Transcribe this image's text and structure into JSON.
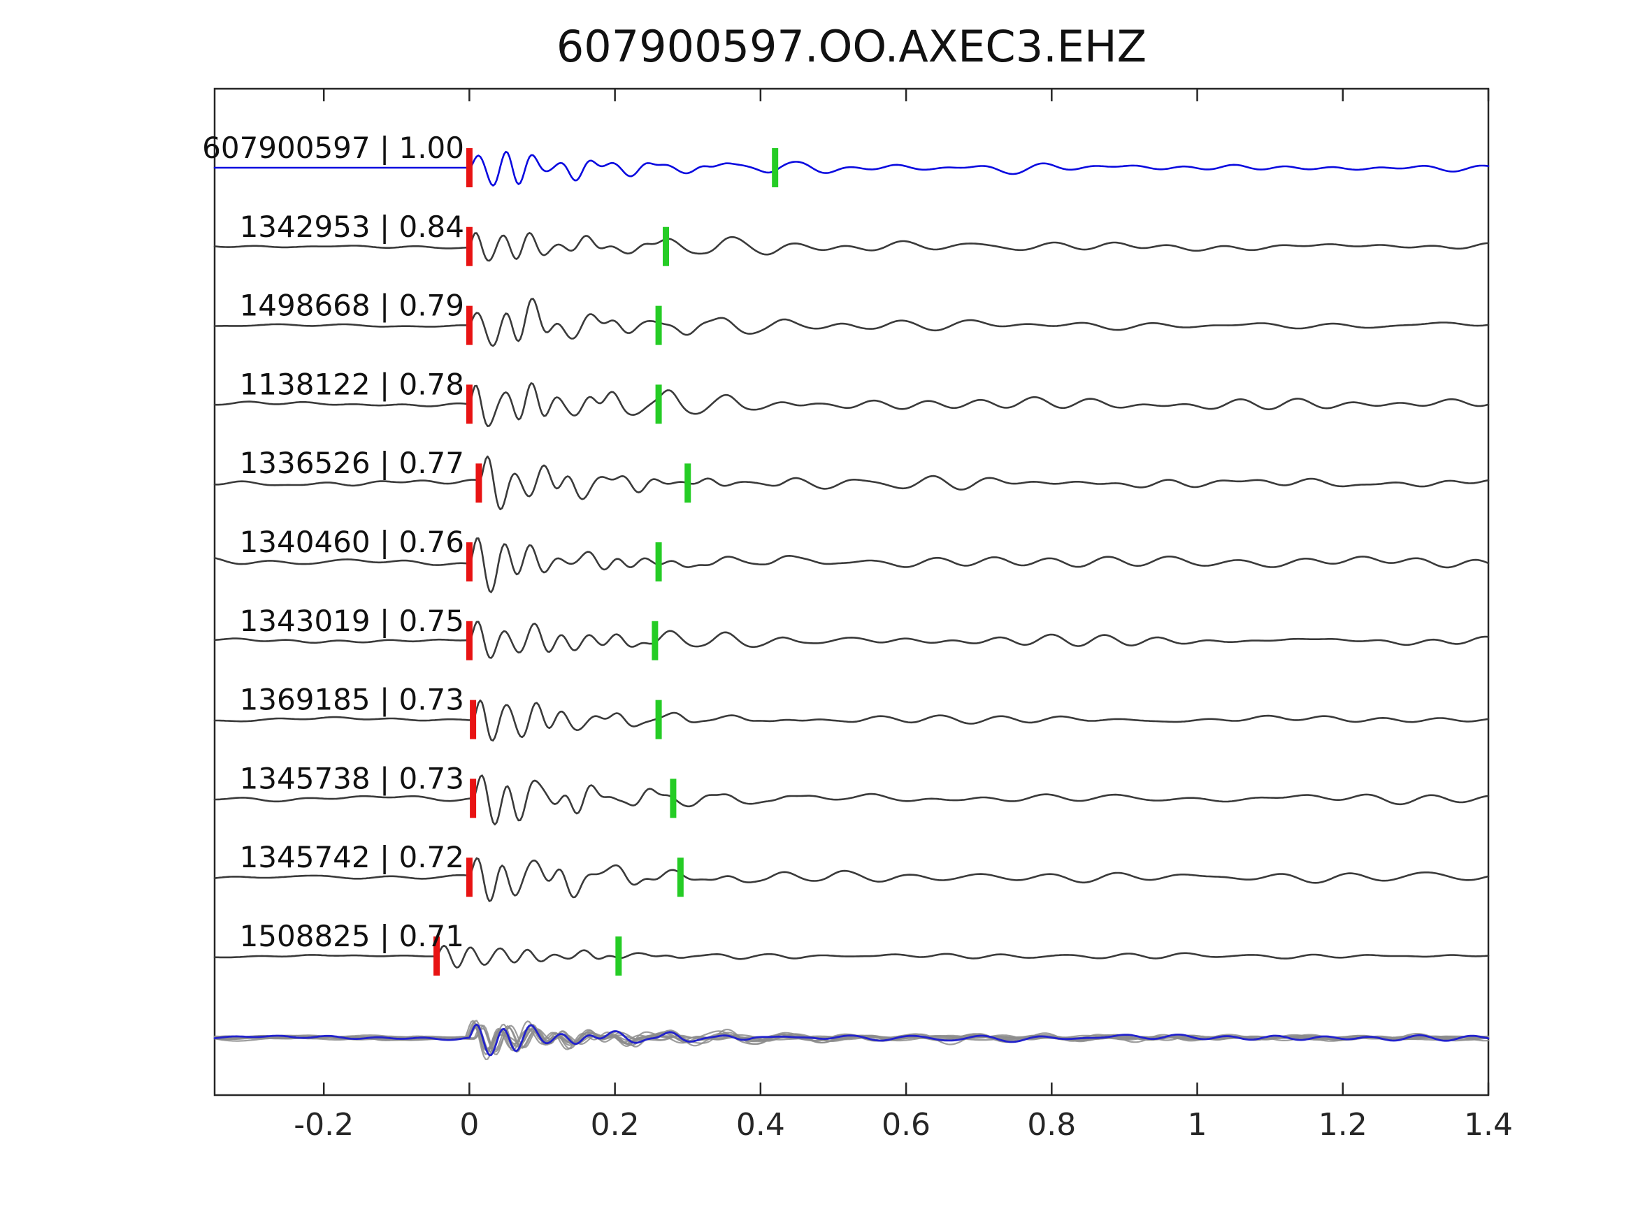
{
  "title": "607900597.OO.AXEC3.EHZ",
  "chart_data": {
    "type": "line",
    "title": "607900597.OO.AXEC3.EHZ",
    "x_axis": {
      "range": [
        -0.35,
        1.4
      ],
      "tick_values": [
        -0.2,
        0,
        0.2,
        0.4,
        0.6,
        0.8,
        1,
        1.2,
        1.4
      ],
      "tick_labels": [
        "-0.2",
        "0",
        "0.2",
        "0.4",
        "0.6",
        "0.8",
        "1",
        "1.2",
        "1.4"
      ]
    },
    "colors": {
      "template": "#0a0adf",
      "detection": "#3a3a3a",
      "pick_red": "#e81313",
      "pick_green": "#25cc25",
      "stack_members": "#8c8c8c",
      "stack_overlay": "#2222cc",
      "axis": "#262626",
      "text": "#111111"
    },
    "traces": [
      {
        "label": "607900597 | 1.00",
        "id": "607900597",
        "cc": 1.0,
        "is_template": true,
        "red_pick": 0.0,
        "green_pick": 0.42,
        "amplitude": 52,
        "pre_noise": 0.0,
        "seed": 101
      },
      {
        "label": "1342953 | 0.84",
        "id": "1342953",
        "cc": 0.84,
        "is_template": false,
        "red_pick": 0.0,
        "green_pick": 0.27,
        "amplitude": 64,
        "pre_noise": 0.07,
        "seed": 202
      },
      {
        "label": "1498668 | 0.79",
        "id": "1498668",
        "cc": 0.79,
        "is_template": false,
        "red_pick": 0.0,
        "green_pick": 0.26,
        "amplitude": 68,
        "pre_noise": 0.06,
        "seed": 303
      },
      {
        "label": "1138122 | 0.78",
        "id": "1138122",
        "cc": 0.78,
        "is_template": false,
        "red_pick": 0.0,
        "green_pick": 0.26,
        "amplitude": 72,
        "pre_noise": 0.07,
        "seed": 404
      },
      {
        "label": "1336526 | 0.77",
        "id": "1336526",
        "cc": 0.77,
        "is_template": false,
        "red_pick": 0.013,
        "green_pick": 0.3,
        "amplitude": 66,
        "pre_noise": 0.13,
        "seed": 505
      },
      {
        "label": "1340460 | 0.76",
        "id": "1340460",
        "cc": 0.76,
        "is_template": false,
        "red_pick": 0.0,
        "green_pick": 0.26,
        "amplitude": 76,
        "pre_noise": 0.15,
        "seed": 606
      },
      {
        "label": "1343019 | 0.75",
        "id": "1343019",
        "cc": 0.75,
        "is_template": false,
        "red_pick": 0.0,
        "green_pick": 0.255,
        "amplitude": 60,
        "pre_noise": 0.08,
        "seed": 707
      },
      {
        "label": "1369185 | 0.73",
        "id": "1369185",
        "cc": 0.73,
        "is_template": false,
        "red_pick": 0.005,
        "green_pick": 0.26,
        "amplitude": 64,
        "pre_noise": 0.07,
        "seed": 808
      },
      {
        "label": "1345738 | 0.73",
        "id": "1345738",
        "cc": 0.73,
        "is_template": false,
        "red_pick": 0.005,
        "green_pick": 0.28,
        "amplitude": 74,
        "pre_noise": 0.08,
        "seed": 909
      },
      {
        "label": "1345742 | 0.72",
        "id": "1345742",
        "cc": 0.72,
        "is_template": false,
        "red_pick": 0.0,
        "green_pick": 0.29,
        "amplitude": 74,
        "pre_noise": 0.07,
        "seed": 1010
      },
      {
        "label": "1508825 | 0.71",
        "id": "1508825",
        "cc": 0.71,
        "is_template": false,
        "red_pick": -0.045,
        "green_pick": 0.205,
        "amplitude": 38,
        "pre_noise": 0.1,
        "seed": 1111
      }
    ],
    "stack": {
      "member_amplitude": 40,
      "overlay_amplitude": 44
    }
  }
}
